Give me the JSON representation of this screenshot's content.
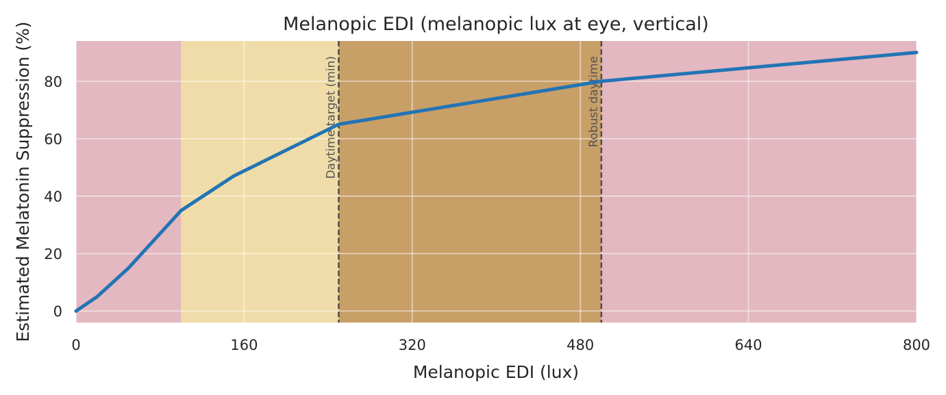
{
  "chart_data": {
    "type": "line",
    "title": "Melanopic EDI (melanopic lux at eye, vertical)",
    "xlabel": "Melanopic EDI (lux)",
    "ylabel": "Estimated Melatonin Suppression (%)",
    "xlim": [
      0,
      800
    ],
    "ylim": [
      -4,
      94
    ],
    "xticks": [
      0,
      160,
      320,
      480,
      640,
      800
    ],
    "yticks": [
      0,
      20,
      40,
      60,
      80
    ],
    "grid": true,
    "series": [
      {
        "x": [
          0,
          20,
          50,
          100,
          150,
          250,
          500,
          800
        ],
        "y": [
          0,
          5,
          15,
          35,
          47,
          65,
          80,
          90
        ],
        "color": "#2274b5"
      }
    ],
    "bands": [
      {
        "x0": 0,
        "x1": 100,
        "color": "#e3b8c0"
      },
      {
        "x0": 100,
        "x1": 250,
        "color": "#f0dca8"
      },
      {
        "x0": 250,
        "x1": 500,
        "color": "#c99f68"
      },
      {
        "x0": 500,
        "x1": 800,
        "color": "#e3b8c0"
      }
    ],
    "reference_lines": [
      {
        "x": 250,
        "label": "Daytime target (min)"
      },
      {
        "x": 500,
        "label": "Robust daytime"
      }
    ]
  }
}
